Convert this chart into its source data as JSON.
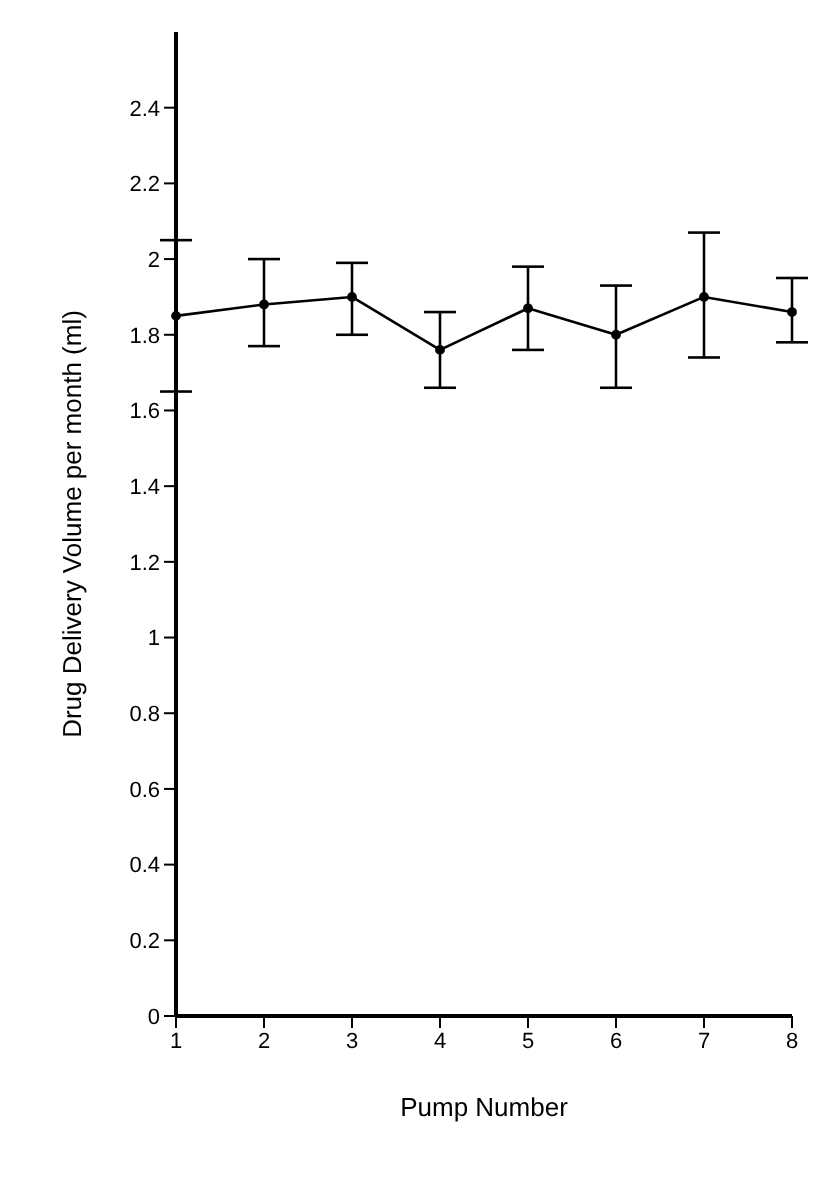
{
  "chart_data": {
    "type": "line",
    "xlabel": "Pump Number",
    "ylabel": "Drug Delivery Volume per month (ml)",
    "categories": [
      "1",
      "2",
      "3",
      "4",
      "5",
      "6",
      "7",
      "8"
    ],
    "series": [
      {
        "color": "#000000",
        "values": [
          1.85,
          1.88,
          1.9,
          1.76,
          1.87,
          1.8,
          1.9,
          1.86
        ],
        "errors": [
          [
            1.65,
            2.05
          ],
          [
            1.77,
            2.0
          ],
          [
            1.8,
            1.99
          ],
          [
            1.66,
            1.86
          ],
          [
            1.76,
            1.98
          ],
          [
            1.66,
            1.93
          ],
          [
            1.74,
            2.07
          ],
          [
            1.78,
            1.95
          ]
        ]
      }
    ],
    "ylim": [
      0,
      2.6
    ],
    "yticks": [
      0,
      0.2,
      0.4,
      0.6,
      0.8,
      1,
      1.2,
      1.4,
      1.6,
      1.8,
      2,
      2.2,
      2.4
    ],
    "grid": false,
    "legend": false,
    "marker": "circle",
    "line_style": "solid"
  }
}
